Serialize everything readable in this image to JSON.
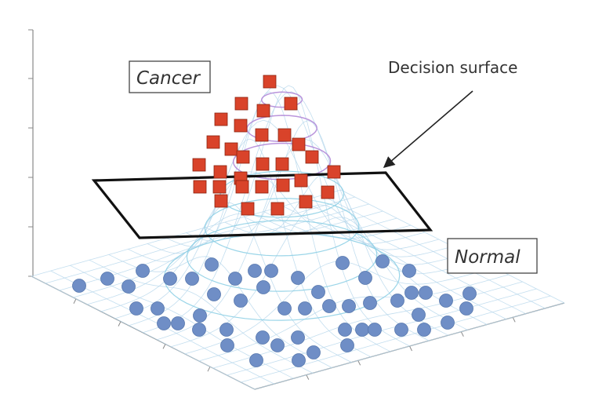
{
  "labels": {
    "cancer": "Cancer",
    "normal": "Normal",
    "decision_surface": "Decision surface"
  },
  "colors": {
    "cancer_marker": "#d9432a",
    "normal_marker": "#6f8ec6",
    "plane": "#111111",
    "mesh": "#b8d8ec",
    "contour_inner": "#b28ad8"
  },
  "markers": {
    "cancer_shape": "square",
    "normal_shape": "circle"
  }
}
